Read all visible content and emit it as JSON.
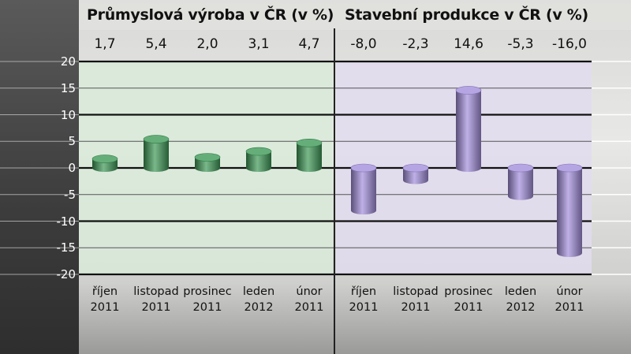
{
  "chart_data": [
    {
      "type": "bar",
      "title": "Průmyslová výroba v ČR (v %)",
      "categories": [
        [
          "říjen",
          "2011"
        ],
        [
          "listopad",
          "2011"
        ],
        [
          "prosinec",
          "2011"
        ],
        [
          "leden",
          "2012"
        ],
        [
          "únor",
          "2011"
        ]
      ],
      "values": [
        1.7,
        5.4,
        2.0,
        3.1,
        4.7
      ],
      "value_labels": [
        "1,7",
        "5,4",
        "2,0",
        "3,1",
        "4,7"
      ],
      "ylim": [
        -20,
        20
      ],
      "yticks": [
        "20",
        "15",
        "10",
        "5",
        "0",
        "-5",
        "-10",
        "-15",
        "-20"
      ],
      "grid": true,
      "bar_color": "#3f9a58",
      "background_color": "#d9ead9"
    },
    {
      "type": "bar",
      "title": "Stavební produkce v ČR (v %)",
      "categories": [
        [
          "říjen",
          "2011"
        ],
        [
          "listopad",
          "2011"
        ],
        [
          "prosinec",
          "2011"
        ],
        [
          "leden",
          "2012"
        ],
        [
          "únor",
          "2011"
        ]
      ],
      "values": [
        -8.0,
        -2.3,
        14.6,
        -5.3,
        -16.0
      ],
      "value_labels": [
        "-8,0",
        "-2,3",
        "14,6",
        "-5,3",
        "-16,0"
      ],
      "ylim": [
        -20,
        20
      ],
      "grid": true,
      "bar_color": "#a48fdc",
      "background_color": "#e2dcef"
    }
  ]
}
